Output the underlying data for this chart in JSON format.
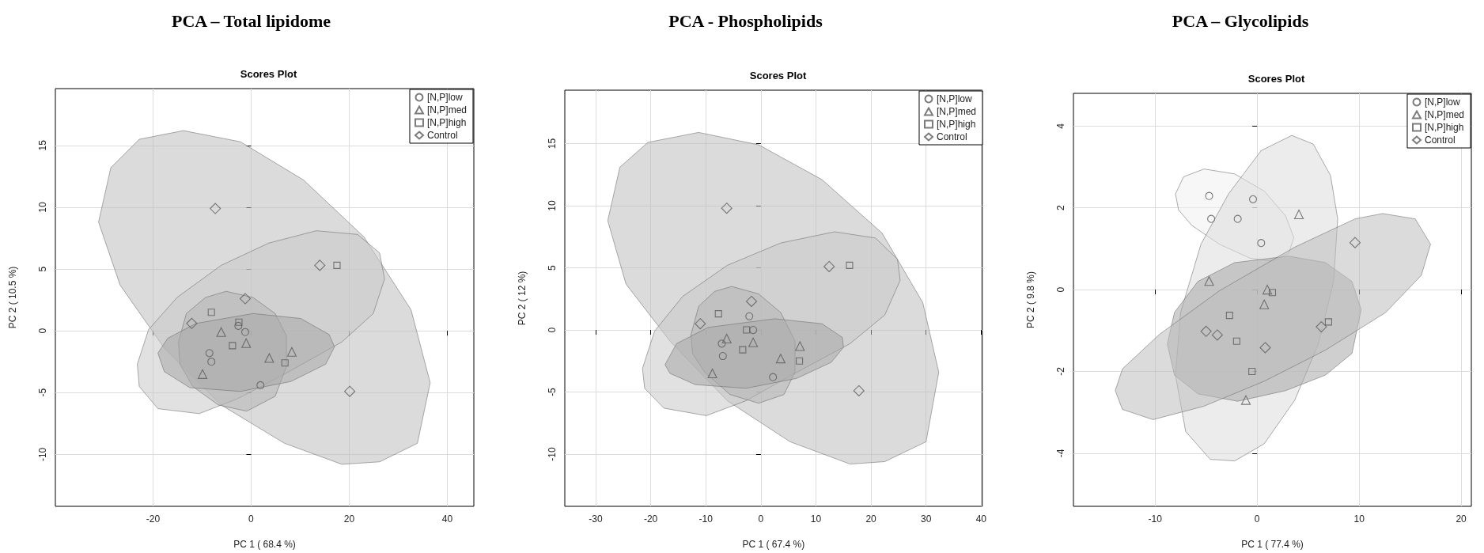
{
  "chart_data": [
    {
      "type": "scatter",
      "title": "PCA – Total lipidome",
      "subtitle": "Scores Plot",
      "xlabel": "PC 1 ( 68.4 %)",
      "ylabel": "PC 2 ( 10.5 %)",
      "xlim": [
        -39.9,
        45.4
      ],
      "ylim": [
        -14.2,
        19.6
      ],
      "xticks": [
        -20,
        0,
        20,
        40
      ],
      "yticks": [
        -10,
        -5,
        0,
        5,
        10,
        15
      ],
      "grid": true,
      "legend": "top right",
      "series": [
        {
          "name": "[N,P]low",
          "color": "#5a5a5a",
          "marker": "circle",
          "x": [
            -2.6,
            -1.2,
            -8.5,
            -8.1,
            1.9
          ],
          "values": [
            0.4,
            -0.1,
            -1.8,
            -2.5,
            -4.4
          ]
        },
        {
          "name": "[N,P]med",
          "color": "#5a5a5a",
          "marker": "triangle",
          "x": [
            -6.1,
            -1.0,
            3.7,
            8.3,
            -9.9
          ],
          "values": [
            -0.1,
            -1.0,
            -2.2,
            -1.7,
            -3.5
          ]
        },
        {
          "name": "[N,P]high",
          "color": "#5a5a5a",
          "marker": "square",
          "x": [
            -8.1,
            -2.5,
            -3.8,
            6.9,
            17.5
          ],
          "values": [
            1.5,
            0.7,
            -1.2,
            -2.6,
            5.3
          ]
        },
        {
          "name": "Control",
          "color": "#5a5a5a",
          "marker": "diamond",
          "x": [
            -7.3,
            14.0,
            -1.2,
            -12.1,
            20.1
          ],
          "values": [
            9.9,
            5.3,
            2.6,
            0.6,
            -4.9
          ]
        },
        {
          "type": "area",
          "color": "#bdbdbd",
          "x": [
            -31.1,
            -28.6,
            -22.8,
            -13.8,
            -2.2,
            10.7,
            23.0,
            32.6,
            36.5,
            33.9,
            26.2,
            18.5,
            6.8,
            -6.1,
            -17.7,
            -26.7
          ],
          "values": [
            8.8,
            13.2,
            15.5,
            16.2,
            15.3,
            12.2,
            7.6,
            1.7,
            -4.2,
            -9.1,
            -10.6,
            -10.8,
            -9.1,
            -6.0,
            -1.4,
            3.7
          ]
        },
        {
          "type": "area",
          "color": "#c8c8c8",
          "x": [
            -23.2,
            -20.9,
            -15.1,
            -6.1,
            3.6,
            13.3,
            21.7,
            26.2,
            27.2,
            24.9,
            18.5,
            6.8,
            -2.8,
            -10.6,
            -19.0,
            -22.8
          ],
          "values": [
            -2.7,
            0.1,
            2.7,
            5.3,
            7.1,
            8.1,
            7.8,
            6.3,
            4.2,
            1.4,
            -0.9,
            -3.5,
            -5.5,
            -6.7,
            -6.3,
            -4.5
          ]
        },
        {
          "type": "area",
          "color": "#b5b5b5",
          "x": [
            -14.8,
            -13.2,
            -9.3,
            -5.1,
            0.4,
            4.9,
            7.2,
            7.2,
            4.9,
            -0.9,
            -6.7,
            -11.9,
            -14.5
          ],
          "values": [
            -0.9,
            1.4,
            2.7,
            3.2,
            2.7,
            1.4,
            -0.4,
            -2.9,
            -5.3,
            -6.5,
            -6.0,
            -4.5,
            -2.7
          ]
        },
        {
          "type": "area",
          "color": "#a8a8a8",
          "x": [
            -19.0,
            -17.0,
            -11.2,
            0.4,
            10.1,
            15.9,
            17.0,
            15.2,
            8.1,
            -2.2,
            -12.5,
            -17.7
          ],
          "values": [
            -1.8,
            -0.6,
            0.6,
            1.4,
            1.0,
            -0.3,
            -1.3,
            -2.7,
            -4.1,
            -4.9,
            -4.6,
            -3.3
          ]
        }
      ]
    },
    {
      "type": "scatter",
      "title": "PCA - Phospholipids",
      "subtitle": "Scores Plot",
      "xlabel": "PC 1 ( 67.4 %)",
      "ylabel": "PC 2 ( 12 %)",
      "xlim": [
        -35.6,
        40.2
      ],
      "ylim": [
        -14.2,
        19.3
      ],
      "xticks": [
        -30,
        -20,
        -10,
        0,
        10,
        20,
        30,
        40
      ],
      "yticks": [
        -10,
        -5,
        0,
        5,
        10,
        15
      ],
      "grid": true,
      "legend": "top right",
      "series": [
        {
          "name": "[N,P]low",
          "color": "#5a5a5a",
          "marker": "circle",
          "x": [
            -2.1,
            -1.4,
            -7.1,
            -6.9,
            2.2
          ],
          "values": [
            1.1,
            0.0,
            -1.1,
            -2.1,
            -3.8
          ]
        },
        {
          "name": "[N,P]med",
          "color": "#5a5a5a",
          "marker": "triangle",
          "x": [
            -6.2,
            -1.4,
            3.6,
            7.1,
            -8.8
          ],
          "values": [
            -0.7,
            -1.0,
            -2.3,
            -1.3,
            -3.5
          ]
        },
        {
          "name": "[N,P]high",
          "color": "#5a5a5a",
          "marker": "square",
          "x": [
            -7.7,
            -2.6,
            -3.3,
            7.0,
            16.1
          ],
          "values": [
            1.3,
            0.0,
            -1.6,
            -2.5,
            5.2
          ]
        },
        {
          "name": "Control",
          "color": "#5a5a5a",
          "marker": "diamond",
          "x": [
            -6.2,
            12.4,
            -1.7,
            -11.0,
            17.8
          ],
          "values": [
            9.8,
            5.1,
            2.3,
            0.5,
            -4.9
          ]
        },
        {
          "type": "area",
          "color": "#bdbdbd",
          "x": [
            -27.8,
            -25.6,
            -20.5,
            -11.3,
            -0.4,
            11.1,
            22.0,
            29.4,
            32.3,
            30.0,
            22.5,
            16.2,
            5.3,
            -6.1,
            -16.5,
            -24.5
          ],
          "values": [
            8.8,
            13.1,
            15.1,
            15.9,
            14.9,
            12.1,
            7.8,
            2.2,
            -3.4,
            -9.0,
            -10.6,
            -10.8,
            -9.0,
            -5.7,
            -0.9,
            3.7
          ]
        },
        {
          "type": "area",
          "color": "#c8c8c8",
          "x": [
            -21.5,
            -19.3,
            -14.2,
            -6.1,
            3.6,
            13.4,
            20.8,
            24.8,
            25.3,
            22.5,
            16.2,
            5.3,
            -2.7,
            -9.9,
            -17.6,
            -21.1
          ],
          "values": [
            -3.1,
            -0.1,
            2.7,
            5.2,
            7.0,
            7.9,
            7.4,
            5.7,
            4.0,
            1.2,
            -1.1,
            -3.7,
            -5.7,
            -6.9,
            -6.3,
            -4.7
          ]
        },
        {
          "type": "area",
          "color": "#b5b5b5",
          "x": [
            -12.7,
            -11.3,
            -8.4,
            -5.3,
            -0.4,
            3.6,
            6.2,
            6.2,
            4.2,
            -0.4,
            -5.6,
            -10.2,
            -12.4
          ],
          "values": [
            -0.4,
            1.9,
            3.1,
            3.5,
            2.9,
            1.4,
            -0.9,
            -3.4,
            -5.2,
            -5.9,
            -5.2,
            -3.4,
            -1.9
          ]
        },
        {
          "type": "area",
          "color": "#a8a8a8",
          "x": [
            -17.4,
            -15.3,
            -9.6,
            2.5,
            11.1,
            14.8,
            15.0,
            12.8,
            6.5,
            -2.7,
            -11.9,
            -16.5
          ],
          "values": [
            -2.8,
            -1.1,
            0.2,
            0.9,
            0.5,
            -0.6,
            -1.4,
            -2.6,
            -3.9,
            -4.7,
            -4.4,
            -3.5
          ]
        }
      ]
    },
    {
      "type": "scatter",
      "title": "PCA – Glycolipids",
      "subtitle": "Scores Plot",
      "xlabel": "PC 1 ( 77.4 %)",
      "ylabel": "PC 2 ( 9.8 %)",
      "xlim": [
        -18.0,
        21.0
      ],
      "ylim": [
        -5.3,
        4.8
      ],
      "xticks": [
        -10,
        0,
        10,
        20
      ],
      "yticks": [
        -4,
        -2,
        0,
        2,
        4
      ],
      "grid": true,
      "legend": "top right",
      "series": [
        {
          "name": "[N,P]low",
          "color": "#5a5a5a",
          "marker": "circle",
          "x": [
            -4.7,
            -4.5,
            -1.9,
            -0.4,
            0.4
          ],
          "values": [
            2.29,
            1.73,
            1.73,
            2.21,
            1.14
          ]
        },
        {
          "name": "[N,P]med",
          "color": "#5a5a5a",
          "marker": "triangle",
          "x": [
            4.1,
            -4.7,
            1.0,
            0.7,
            -1.1
          ],
          "values": [
            1.84,
            0.21,
            0.0,
            -0.36,
            -2.7
          ]
        },
        {
          "name": "[N,P]high",
          "color": "#5a5a5a",
          "marker": "square",
          "x": [
            -2.7,
            -2.0,
            1.5,
            7.0,
            -0.5
          ],
          "values": [
            -0.63,
            -1.26,
            -0.07,
            -0.79,
            -2.0
          ]
        },
        {
          "name": "Control",
          "color": "#5a5a5a",
          "marker": "diamond",
          "x": [
            -5.0,
            -3.9,
            0.8,
            6.3,
            9.6
          ],
          "values": [
            -1.02,
            -1.11,
            -1.42,
            -0.91,
            1.15
          ]
        },
        {
          "type": "area",
          "color": "#f0f0f0",
          "x": [
            -8.0,
            -7.2,
            -5.2,
            -2.2,
            0.7,
            2.8,
            3.6,
            3.1,
            1.6,
            -0.7,
            -3.7,
            -6.4,
            -7.7
          ],
          "values": [
            2.34,
            2.76,
            2.95,
            2.83,
            2.41,
            1.8,
            1.27,
            0.89,
            0.69,
            0.77,
            1.11,
            1.57,
            1.95
          ]
        },
        {
          "type": "area",
          "color": "#dcdcdc",
          "x": [
            3.4,
            5.5,
            7.2,
            7.9,
            7.5,
            6.0,
            3.7,
            0.7,
            -2.2,
            -4.6,
            -7.0,
            -8.0,
            -7.5,
            -5.5,
            -2.8,
            0.4
          ],
          "values": [
            3.77,
            3.56,
            2.79,
            1.73,
            0.2,
            -1.33,
            -2.7,
            -3.77,
            -4.19,
            -4.15,
            -3.47,
            -2.09,
            -0.56,
            1.11,
            2.34,
            3.4
          ]
        },
        {
          "type": "area",
          "color": "#a8a8a8",
          "x": [
            -8.8,
            -8.1,
            -5.8,
            -2.2,
            3.1,
            6.7,
            9.3,
            10.2,
            9.3,
            6.7,
            2.8,
            -1.9,
            -5.8,
            -8.1
          ],
          "values": [
            -1.33,
            -0.56,
            0.2,
            0.66,
            0.82,
            0.66,
            0.2,
            -0.49,
            -1.56,
            -2.09,
            -2.47,
            -2.73,
            -2.55,
            -2.09
          ]
        },
        {
          "type": "area",
          "color": "#bdbdbd",
          "x": [
            -13.9,
            -13.2,
            -9.6,
            -3.7,
            3.7,
            9.6,
            12.3,
            15.5,
            17.0,
            16.1,
            12.6,
            6.7,
            0.7,
            -5.2,
            -10.2,
            -13.2
          ],
          "values": [
            -2.47,
            -1.94,
            -1.1,
            -0.03,
            1.04,
            1.73,
            1.86,
            1.73,
            1.11,
            0.35,
            -0.56,
            -1.48,
            -2.24,
            -2.85,
            -3.18,
            -2.93
          ]
        }
      ]
    }
  ]
}
